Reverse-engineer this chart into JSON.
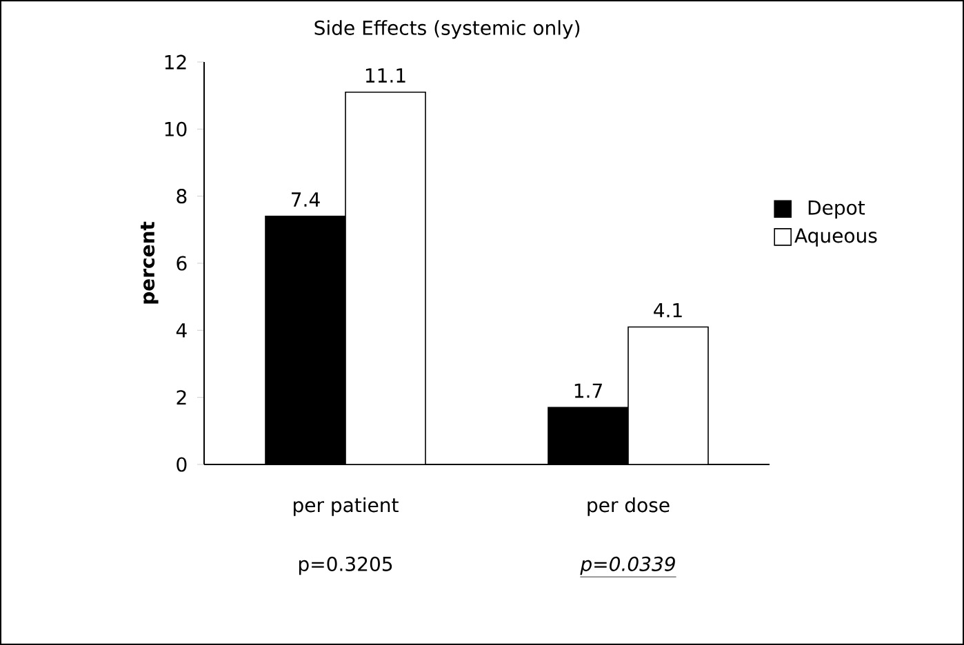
{
  "chart_data": {
    "type": "bar",
    "title": "Side Effects (systemic only)",
    "ylabel": "percent",
    "categories": [
      "per patient",
      "per dose"
    ],
    "series": [
      {
        "name": "Depot",
        "color": "#000000",
        "values": [
          7.4,
          1.7
        ]
      },
      {
        "name": "Aqueous",
        "color": "#ffffff",
        "values": [
          11.1,
          4.1
        ]
      }
    ],
    "ylim": [
      0,
      12
    ],
    "yticks": [
      0,
      2,
      4,
      6,
      8,
      10,
      12
    ],
    "data_labels": true,
    "legend": "right",
    "annotations": [
      "p=0.3205",
      "p=0.0339"
    ]
  }
}
